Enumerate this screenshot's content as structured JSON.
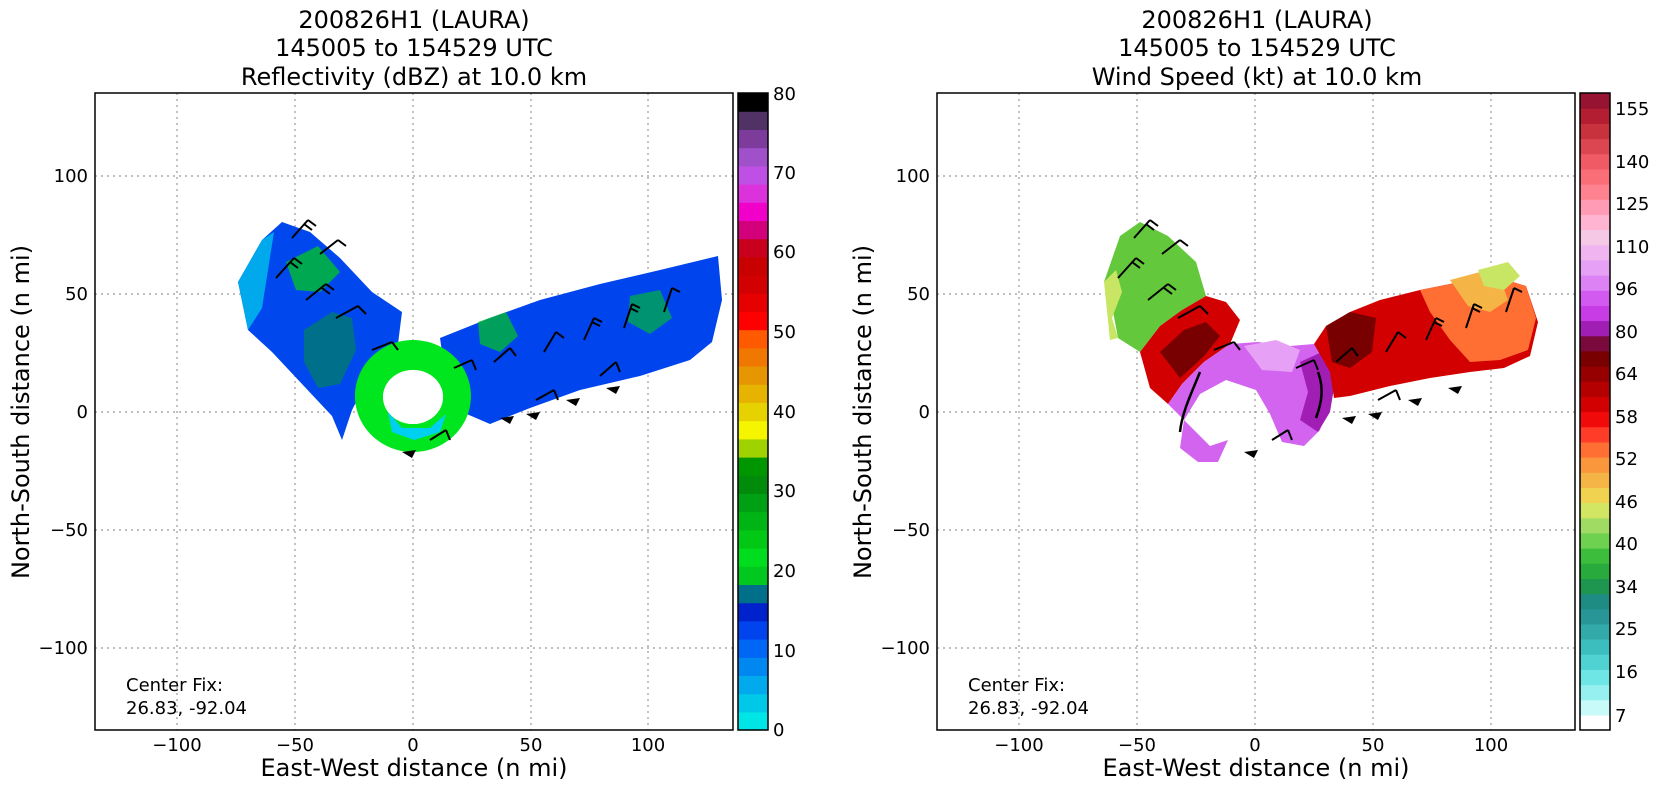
{
  "chart_data": [
    {
      "type": "heatmap",
      "title_lines": [
        "200826H1 (LAURA)",
        "145005 to 154529 UTC",
        "Reflectivity (dBZ) at 10.0 km"
      ],
      "xlabel": "East-West distance (n mi)",
      "ylabel": "North-South distance (n mi)",
      "xlim": [
        -135,
        135
      ],
      "ylim": [
        -135,
        135
      ],
      "x_ticks": [
        -100,
        -50,
        0,
        50,
        100
      ],
      "y_ticks": [
        -100,
        -50,
        0,
        50,
        100
      ],
      "tick_labels": [
        "−100",
        "−50",
        "0",
        "50",
        "100"
      ],
      "grid": true,
      "annotation_lines": [
        "Center Fix:",
        "26.83, -92.04"
      ],
      "colorbar": {
        "range": [
          0,
          80
        ],
        "ticks": [
          0,
          10,
          20,
          30,
          40,
          50,
          60,
          70,
          80
        ],
        "tick_labels": [
          "0",
          "10",
          "20",
          "30",
          "40",
          "50",
          "60",
          "70",
          "80"
        ],
        "colors": [
          "#00e6e6",
          "#00c8e8",
          "#00aaec",
          "#0088f0",
          "#0066f5",
          "#0044ee",
          "#0022cc",
          "#00708a",
          "#00c81e",
          "#00dc1e",
          "#00c814",
          "#00b414",
          "#00a014",
          "#008c0a",
          "#009600",
          "#a0d200",
          "#f5f500",
          "#e6d200",
          "#e6b400",
          "#e69600",
          "#f07800",
          "#ff5a00",
          "#ff0000",
          "#e60000",
          "#d20000",
          "#c80000",
          "#c8001e",
          "#d2007a",
          "#f000c8",
          "#dc32dc",
          "#be50e6",
          "#a050c8",
          "#7d3c9b",
          "#503264",
          "#000000"
        ]
      },
      "wind_field": "wind barbs overlaid on reflectivity swath",
      "colors": {
        "eye_wall": "#00e61e",
        "outer_band": "#0040f0",
        "eye": "#00d0f0"
      }
    },
    {
      "type": "heatmap",
      "title_lines": [
        "200826H1 (LAURA)",
        "145005 to 154529 UTC",
        "Wind Speed (kt) at 10.0 km"
      ],
      "xlabel": "East-West distance (n mi)",
      "ylabel": "North-South distance (n mi)",
      "xlim": [
        -135,
        135
      ],
      "ylim": [
        -135,
        135
      ],
      "x_ticks": [
        -100,
        -50,
        0,
        50,
        100
      ],
      "y_ticks": [
        -100,
        -50,
        0,
        50,
        100
      ],
      "tick_labels": [
        "−100",
        "−50",
        "0",
        "50",
        "100"
      ],
      "grid": true,
      "annotation_lines": [
        "Center Fix:",
        "26.83, -92.04"
      ],
      "colorbar": {
        "tick_labels": [
          "7",
          "16",
          "25",
          "34",
          "40",
          "46",
          "52",
          "58",
          "64",
          "80",
          "96",
          "110",
          "125",
          "140",
          "155"
        ],
        "colors": [
          "#ffffff",
          "#c8fafa",
          "#96f0f0",
          "#6ee6e6",
          "#50d2d2",
          "#3cbebe",
          "#32aaaa",
          "#289696",
          "#1e8c82",
          "#1e9650",
          "#28aa3c",
          "#3cbe3c",
          "#6ed250",
          "#a0dc64",
          "#d2e664",
          "#f0d250",
          "#f5b446",
          "#fa963c",
          "#ff6e32",
          "#ff3c28",
          "#f00a0a",
          "#d20000",
          "#b40000",
          "#960000",
          "#780000",
          "#7a0a3c",
          "#a01eb4",
          "#c83ce6",
          "#d25af0",
          "#dc82f5",
          "#e6a0f5",
          "#f0b4f0",
          "#f5c8e6",
          "#ffb4d2",
          "#ff9bb4",
          "#ff8291",
          "#fa6e78",
          "#f05a64",
          "#dc4650",
          "#c8323c",
          "#b41e32",
          "#961432"
        ]
      },
      "wind_field": "wind barbs overlaid on wind-speed swath",
      "colors": {
        "left_lobe": "#64c83c",
        "core": "#960000",
        "inner_ring": "#d264f0"
      }
    }
  ]
}
